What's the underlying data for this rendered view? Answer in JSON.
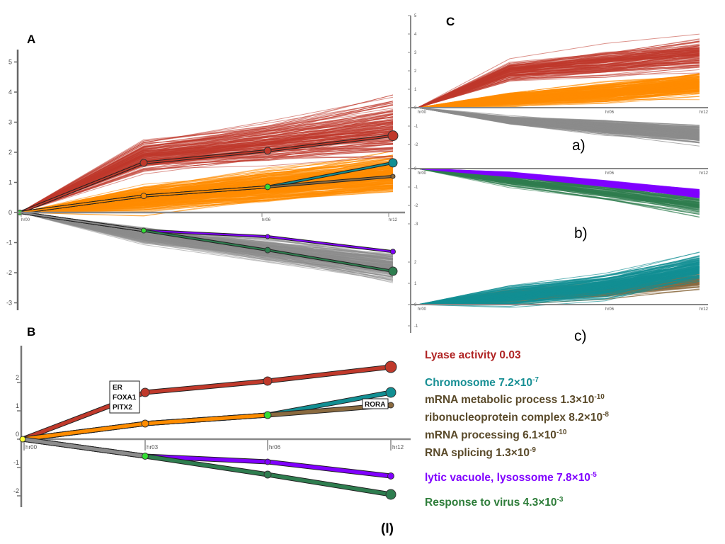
{
  "panels": {
    "A": "A",
    "B": "B",
    "C": "C",
    "ca": "a)",
    "cb": "b)",
    "cc": "c)",
    "roman": "(I)"
  },
  "gene_labels": {
    "er": "ER",
    "foxa1": "FOXA1",
    "pitx2": "PITX2",
    "rora": "RORA"
  },
  "colors": {
    "red": "#c0392b",
    "orange": "#ff8c00",
    "gray": "#8c8c8c",
    "teal": "#128f93",
    "brown": "#8a6a3f",
    "purple": "#8000ff",
    "green": "#2e7d4f",
    "gene_terms": "#5a4a2a",
    "lime_node": "#33dd33",
    "yellow_node": "#ffff33"
  },
  "legend": [
    {
      "text": "Lyase activity 0.03",
      "sup": "",
      "color": "#b02424"
    },
    {
      "text": "Chromosome 7.2×10",
      "sup": "-7",
      "color": "#178f94"
    },
    {
      "text": "mRNA metabolic process 1.3×10",
      "sup": "-10",
      "color": "#5a4a2a"
    },
    {
      "text": "ribonucleoprotein complex 8.2×10",
      "sup": "-8",
      "color": "#5a4a2a"
    },
    {
      "text": "mRNA processing 6.1×10",
      "sup": "-10",
      "color": "#5a4a2a"
    },
    {
      "text": "RNA splicing 1.3×10",
      "sup": "-9",
      "color": "#5a4a2a"
    },
    {
      "text": "lytic vacuole, lysossome 7.8×10",
      "sup": "-5",
      "color": "#8000ff"
    },
    {
      "text": "Response to virus 4.3×10",
      "sup": "-3",
      "color": "#2e7d3a"
    }
  ],
  "chart_data": [
    {
      "panel": "A",
      "type": "line",
      "x": [
        "hr00",
        "hr03",
        "hr06",
        "hr12"
      ],
      "yticks": [
        -3,
        -2,
        -1,
        0,
        1,
        2,
        3,
        4,
        5
      ],
      "ylim": [
        -3.3,
        5.5
      ],
      "xtick_labels": [
        "hr00",
        "hr06",
        "hr12"
      ],
      "series": [
        {
          "values": [
            0,
            1.65,
            2.05,
            2.55
          ],
          "color": "red"
        },
        {
          "values": [
            0,
            0.55,
            0.85,
            1.65
          ],
          "color": "teal"
        },
        {
          "values": [
            0,
            0.55,
            0.85,
            1.2
          ],
          "color": "brown"
        },
        {
          "values": [
            0,
            -0.6,
            -0.8,
            -1.3
          ],
          "color": "purple"
        },
        {
          "values": [
            0,
            -0.6,
            -1.25,
            -1.95
          ],
          "color": "green"
        }
      ]
    },
    {
      "panel": "B",
      "type": "line",
      "x": [
        "hr00",
        "hr03",
        "hr06",
        "hr12"
      ],
      "yticks": [
        -2,
        -1,
        0,
        1,
        2
      ],
      "ylim": [
        -2.4,
        3.0
      ],
      "series": [
        {
          "values": [
            0,
            1.65,
            2.05,
            2.55
          ],
          "color": "red"
        },
        {
          "values": [
            0,
            0.55,
            0.85,
            1.65
          ],
          "color": "teal"
        },
        {
          "values": [
            0,
            0.55,
            0.85,
            1.2
          ],
          "color": "brown"
        },
        {
          "values": [
            0,
            -0.6,
            -0.8,
            -1.3
          ],
          "color": "purple"
        },
        {
          "values": [
            0,
            -0.6,
            -1.25,
            -1.95
          ],
          "color": "green"
        }
      ]
    }
  ]
}
